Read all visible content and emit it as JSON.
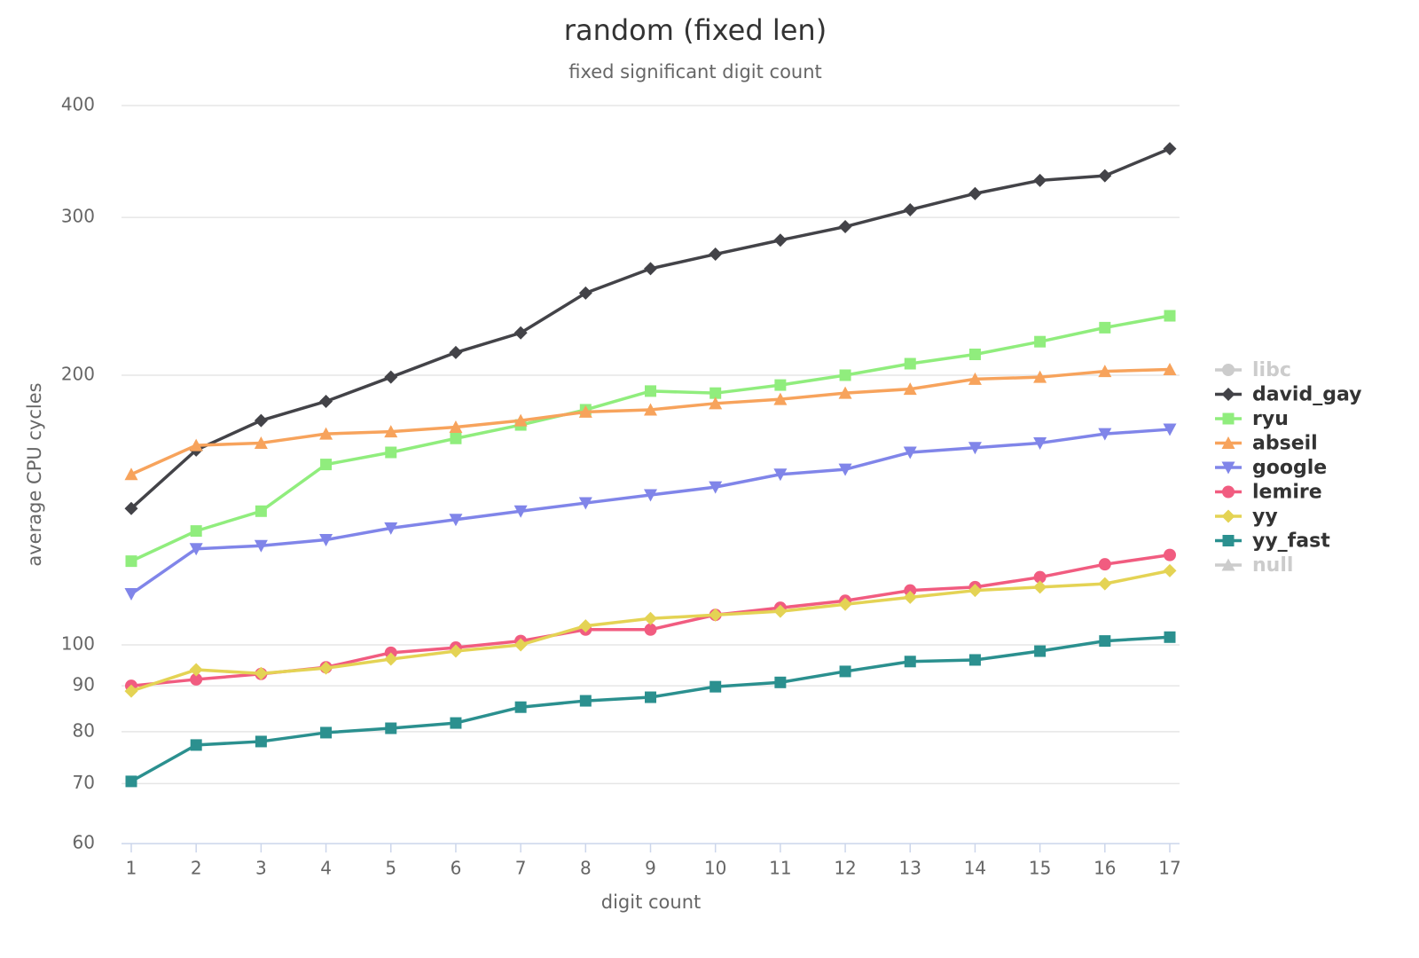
{
  "chart_data": {
    "type": "line",
    "title": "random (fixed len)",
    "subtitle": "fixed significant digit count",
    "x_label": "digit count",
    "y_label": "average CPU cycles",
    "log_y": true,
    "grid": true,
    "legend": "right",
    "x": [
      1,
      2,
      3,
      4,
      5,
      6,
      7,
      8,
      9,
      10,
      11,
      12,
      13,
      14,
      15,
      16,
      17
    ],
    "xlim": [
      1,
      17
    ],
    "xticks": [
      1,
      2,
      3,
      4,
      5,
      6,
      7,
      8,
      9,
      10,
      11,
      12,
      13,
      14,
      15,
      16,
      17
    ],
    "ylim": [
      60,
      400
    ],
    "yticks": [
      60,
      70,
      80,
      90,
      100,
      200,
      300,
      400
    ],
    "series": [
      {
        "name": "libc",
        "color": "#cccccc",
        "marker": "circle",
        "visible": false,
        "values": [
          null,
          null,
          null,
          null,
          null,
          null,
          null,
          null,
          null,
          null,
          null,
          null,
          null,
          null,
          null,
          null,
          null
        ]
      },
      {
        "name": "david_gay",
        "color": "#434348",
        "marker": "diamond",
        "visible": true,
        "values": [
          142,
          165,
          178,
          187,
          199,
          212,
          223,
          247,
          263,
          273,
          283,
          293,
          306,
          319,
          330,
          334,
          358
        ]
      },
      {
        "name": "ryu",
        "color": "#90ed7d",
        "marker": "square",
        "visible": true,
        "values": [
          124,
          134,
          141,
          159,
          164,
          170,
          176,
          183,
          192,
          191,
          195,
          200,
          206,
          211,
          218,
          226,
          233
        ]
      },
      {
        "name": "abseil",
        "color": "#f7a35c",
        "marker": "triangle",
        "visible": true,
        "values": [
          155,
          167,
          168,
          172,
          173,
          175,
          178,
          182,
          183,
          186,
          188,
          191,
          193,
          198,
          199,
          202,
          203
        ]
      },
      {
        "name": "google",
        "color": "#8085e9",
        "marker": "triangle-down",
        "visible": true,
        "values": [
          114,
          128,
          129,
          131,
          135,
          138,
          141,
          144,
          147,
          150,
          155,
          157,
          164,
          166,
          168,
          172,
          174
        ]
      },
      {
        "name": "lemire",
        "color": "#f15c80",
        "marker": "circle",
        "visible": true,
        "values": [
          90,
          91.5,
          92.8,
          94.4,
          98,
          99.3,
          101,
          104,
          104,
          108,
          110,
          112,
          115,
          116,
          119,
          123,
          126
        ]
      },
      {
        "name": "yy",
        "color": "#e4d354",
        "marker": "diamond",
        "visible": true,
        "values": [
          88.8,
          93.8,
          92.9,
          94.2,
          96.4,
          98.4,
          100,
          105,
          107,
          108,
          109,
          111,
          113,
          115,
          116,
          117,
          121
        ]
      },
      {
        "name": "yy_fast",
        "color": "#2b908f",
        "marker": "square",
        "visible": true,
        "values": [
          70.4,
          77.3,
          78,
          79.8,
          80.7,
          81.8,
          85.2,
          86.6,
          87.4,
          89.8,
          90.8,
          93.4,
          95.8,
          96.2,
          98.4,
          101,
          102
        ]
      },
      {
        "name": "null",
        "color": "#cccccc",
        "marker": "triangle",
        "visible": false,
        "values": [
          null,
          null,
          null,
          null,
          null,
          null,
          null,
          null,
          null,
          null,
          null,
          null,
          null,
          null,
          null,
          null,
          null
        ]
      }
    ]
  }
}
